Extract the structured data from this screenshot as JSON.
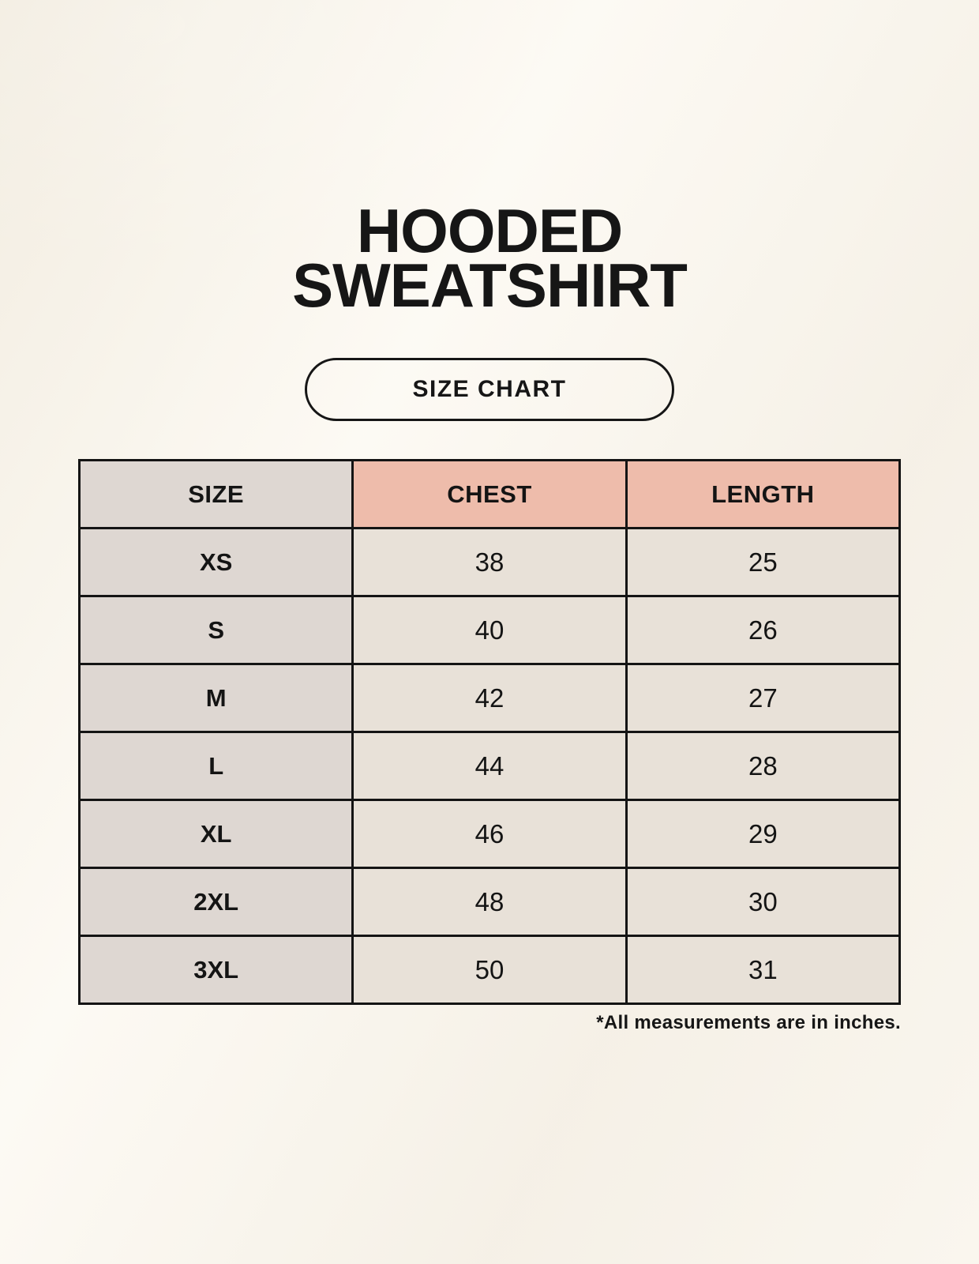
{
  "page": {
    "title_line1": "HOODED",
    "title_line2": "SWEATSHIRT",
    "badge_label": "SIZE CHART",
    "footnote": "*All measurements are in inches."
  },
  "colors": {
    "background": "#f8f4ec",
    "header_accent": "#eebcab",
    "size_column": "#ded7d2",
    "data_cell": "#e8e1d8",
    "border": "#141414",
    "text": "#161616"
  },
  "table": {
    "headers": [
      "SIZE",
      "CHEST",
      "LENGTH"
    ],
    "rows": [
      [
        "XS",
        "38",
        "25"
      ],
      [
        "S",
        "40",
        "26"
      ],
      [
        "M",
        "42",
        "27"
      ],
      [
        "L",
        "44",
        "28"
      ],
      [
        "XL",
        "46",
        "29"
      ],
      [
        "2XL",
        "48",
        "30"
      ],
      [
        "3XL",
        "50",
        "31"
      ]
    ]
  },
  "chart_data": {
    "type": "table",
    "title": "HOODED SWEATSHIRT SIZE CHART",
    "columns": [
      "SIZE",
      "CHEST",
      "LENGTH"
    ],
    "rows": [
      {
        "size": "XS",
        "chest": 38,
        "length": 25
      },
      {
        "size": "S",
        "chest": 40,
        "length": 26
      },
      {
        "size": "M",
        "chest": 42,
        "length": 27
      },
      {
        "size": "L",
        "chest": 44,
        "length": 28
      },
      {
        "size": "XL",
        "chest": 46,
        "length": 29
      },
      {
        "size": "2XL",
        "chest": 48,
        "length": 30
      },
      {
        "size": "3XL",
        "chest": 50,
        "length": 31
      }
    ],
    "units_note": "*All measurements are in inches."
  }
}
